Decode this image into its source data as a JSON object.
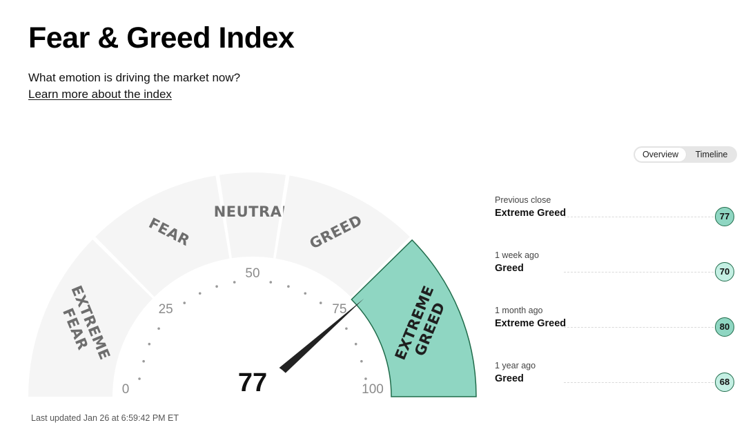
{
  "header": {
    "title": "Fear & Greed Index",
    "subtitle": "What emotion is driving the market now?",
    "learn_link": "Learn more about the index"
  },
  "view_toggle": {
    "options": [
      "Overview",
      "Timeline"
    ],
    "selected": "Overview"
  },
  "gauge": {
    "score": 77,
    "score_text": "77",
    "segments": [
      {
        "label_lines": [
          "EXTREME",
          "FEAR"
        ],
        "from": 0,
        "to": 25
      },
      {
        "label_lines": [
          "FEAR"
        ],
        "from": 25,
        "to": 45
      },
      {
        "label_lines": [
          "NEUTRAL"
        ],
        "from": 45,
        "to": 55
      },
      {
        "label_lines": [
          "GREED"
        ],
        "from": 55,
        "to": 75
      },
      {
        "label_lines": [
          "EXTREME",
          "GREED"
        ],
        "from": 75,
        "to": 100
      }
    ],
    "ticks": [
      {
        "value": 0,
        "text": "0"
      },
      {
        "value": 25,
        "text": "25"
      },
      {
        "value": 50,
        "text": "50"
      },
      {
        "value": 75,
        "text": "75"
      },
      {
        "value": 100,
        "text": "100"
      }
    ],
    "colors": {
      "segment_inactive": "#f5f5f5",
      "segment_active": "#8fd6c2",
      "segment_active_stroke": "#1f6b4a",
      "needle": "#222222"
    }
  },
  "last_updated": "Last updated Jan 26 at 6:59:42 PM ET",
  "history": [
    {
      "period": "Previous close",
      "rating": "Extreme Greed",
      "value": "77",
      "color": "#8fd6c2"
    },
    {
      "period": "1 week ago",
      "rating": "Greed",
      "value": "70",
      "color": "#c4efe3"
    },
    {
      "period": "1 month ago",
      "rating": "Extreme Greed",
      "value": "80",
      "color": "#8fd6c2"
    },
    {
      "period": "1 year ago",
      "rating": "Greed",
      "value": "68",
      "color": "#c4efe3"
    }
  ]
}
